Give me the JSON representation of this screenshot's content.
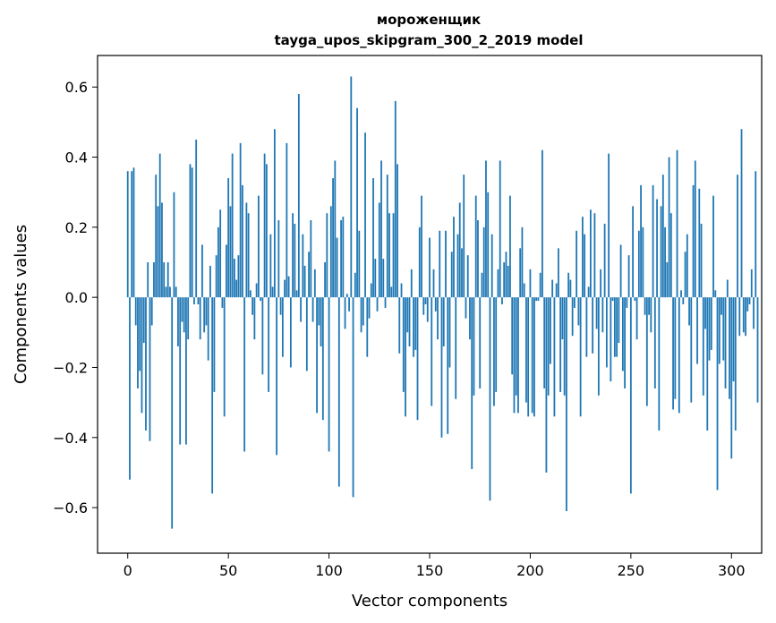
{
  "chart_data": {
    "type": "bar",
    "title": "мороженщик",
    "subtitle": "tayga_upos_skipgram_300_2_2019 model",
    "xlabel": "Vector components",
    "ylabel": "Components values",
    "xlim": [
      -15,
      315
    ],
    "ylim": [
      -0.73,
      0.69
    ],
    "xticks": [
      0,
      50,
      100,
      150,
      200,
      250,
      300
    ],
    "yticks": [
      -0.6,
      -0.4,
      -0.2,
      0.0,
      0.2,
      0.4,
      0.6
    ],
    "ytick_labels": [
      "−0.6",
      "−0.4",
      "−0.2",
      "0.0",
      "0.2",
      "0.4",
      "0.6"
    ],
    "bar_color": "#1f77b4",
    "grid": false,
    "values": [
      0.36,
      -0.52,
      0.36,
      0.37,
      -0.08,
      -0.26,
      -0.21,
      -0.33,
      -0.13,
      -0.38,
      0.1,
      -0.41,
      -0.08,
      0.1,
      0.35,
      0.26,
      0.41,
      0.27,
      0.1,
      0.03,
      0.1,
      0.03,
      -0.66,
      0.3,
      0.03,
      -0.14,
      -0.42,
      -0.07,
      -0.1,
      -0.42,
      -0.12,
      0.38,
      0.37,
      -0.02,
      0.45,
      -0.02,
      -0.12,
      0.15,
      -0.1,
      -0.08,
      -0.18,
      0.09,
      -0.56,
      -0.27,
      0.12,
      0.2,
      0.25,
      -0.03,
      -0.34,
      0.15,
      0.34,
      0.26,
      0.41,
      0.11,
      0.05,
      0.12,
      0.44,
      0.32,
      -0.44,
      0.27,
      0.24,
      0.02,
      -0.05,
      -0.12,
      0.04,
      0.29,
      -0.01,
      -0.22,
      0.41,
      0.38,
      -0.27,
      0.18,
      0.03,
      0.48,
      -0.45,
      0.22,
      -0.05,
      -0.17,
      0.05,
      0.44,
      0.06,
      -0.2,
      0.24,
      0.21,
      0.02,
      0.58,
      -0.07,
      0.18,
      0.09,
      -0.21,
      0.13,
      0.22,
      -0.07,
      0.08,
      -0.33,
      -0.08,
      -0.14,
      -0.35,
      0.1,
      0.24,
      -0.44,
      0.26,
      0.34,
      0.39,
      0.17,
      -0.54,
      0.22,
      0.23,
      -0.09,
      0.01,
      -0.04,
      0.63,
      -0.57,
      0.07,
      0.54,
      0.19,
      -0.1,
      -0.08,
      0.47,
      -0.17,
      -0.06,
      0.04,
      0.34,
      0.11,
      -0.04,
      0.27,
      0.39,
      0.11,
      -0.03,
      0.35,
      0.24,
      0.03,
      0.24,
      0.56,
      0.38,
      -0.16,
      0.04,
      -0.27,
      -0.34,
      -0.1,
      -0.14,
      0.08,
      -0.17,
      -0.15,
      -0.35,
      0.2,
      0.29,
      -0.05,
      -0.02,
      -0.07,
      0.17,
      -0.31,
      0.08,
      -0.04,
      -0.12,
      0.19,
      -0.4,
      -0.14,
      0.19,
      -0.39,
      -0.2,
      0.13,
      0.23,
      -0.29,
      0.18,
      0.27,
      0.14,
      0.35,
      -0.06,
      0.12,
      -0.12,
      -0.49,
      -0.28,
      0.29,
      0.22,
      -0.26,
      0.07,
      0.2,
      0.39,
      0.3,
      -0.58,
      0.18,
      -0.31,
      -0.27,
      0.08,
      0.39,
      -0.02,
      0.1,
      0.13,
      0.09,
      0.29,
      -0.22,
      -0.33,
      -0.28,
      -0.33,
      0.14,
      0.2,
      0.04,
      -0.3,
      -0.34,
      0.08,
      -0.33,
      -0.34,
      -0.01,
      -0.01,
      0.07,
      0.42,
      -0.26,
      -0.5,
      -0.28,
      -0.19,
      0.05,
      -0.34,
      0.04,
      0.14,
      -0.27,
      -0.12,
      -0.28,
      -0.61,
      0.07,
      0.05,
      -0.11,
      -0.03,
      0.19,
      -0.08,
      -0.34,
      0.23,
      0.18,
      -0.17,
      0.03,
      0.25,
      -0.16,
      0.24,
      -0.09,
      -0.28,
      0.08,
      -0.1,
      0.21,
      -0.2,
      0.41,
      -0.24,
      -0.01,
      -0.17,
      -0.17,
      -0.13,
      0.15,
      -0.21,
      -0.26,
      -0.03,
      0.12,
      -0.56,
      0.26,
      -0.01,
      -0.12,
      0.19,
      0.32,
      0.2,
      -0.05,
      -0.31,
      -0.05,
      -0.1,
      0.32,
      -0.26,
      0.28,
      -0.38,
      0.26,
      0.35,
      0.2,
      0.1,
      0.4,
      0.24,
      -0.32,
      -0.29,
      0.42,
      -0.33,
      0.02,
      -0.02,
      0.13,
      0.18,
      -0.08,
      -0.3,
      0.32,
      0.39,
      -0.19,
      0.31,
      0.21,
      -0.28,
      -0.09,
      -0.38,
      -0.18,
      -0.15,
      0.29,
      0.02,
      -0.55,
      -0.19,
      -0.05,
      -0.18,
      -0.26,
      0.05,
      -0.29,
      -0.46,
      -0.24,
      -0.38,
      0.35,
      -0.11,
      0.48,
      -0.1,
      -0.11,
      -0.04,
      -0.02,
      0.08,
      -0.09,
      0.36,
      -0.3
    ]
  }
}
